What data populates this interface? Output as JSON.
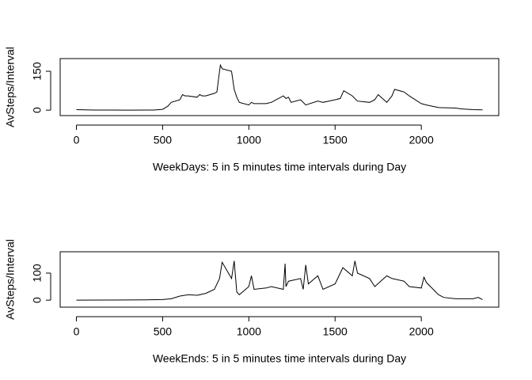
{
  "chart_data": [
    {
      "type": "line",
      "ylabel": "AvSteps/Interval",
      "xlabel": "WeekDays: 5 in 5 minutes time intervals during Day",
      "color": "#000000",
      "x": [
        0,
        100,
        200,
        300,
        400,
        450,
        500,
        530,
        550,
        600,
        615,
        630,
        645,
        700,
        715,
        730,
        750,
        800,
        815,
        830,
        835,
        845,
        900,
        915,
        930,
        945,
        1000,
        1015,
        1030,
        1100,
        1130,
        1200,
        1215,
        1230,
        1245,
        1300,
        1330,
        1400,
        1430,
        1500,
        1530,
        1550,
        1600,
        1630,
        1700,
        1730,
        1750,
        1800,
        1830,
        1845,
        1900,
        1930,
        2000,
        2030,
        2100,
        2200,
        2230,
        2300,
        2355
      ],
      "values": [
        2,
        0.5,
        0.3,
        0.2,
        0.3,
        0.5,
        3,
        15,
        30,
        40,
        60,
        55,
        55,
        50,
        60,
        55,
        55,
        65,
        70,
        150,
        174,
        160,
        150,
        80,
        50,
        30,
        20,
        30,
        25,
        25,
        30,
        55,
        45,
        50,
        30,
        40,
        20,
        35,
        30,
        40,
        45,
        75,
        55,
        35,
        30,
        40,
        60,
        30,
        55,
        80,
        70,
        55,
        25,
        20,
        10,
        8,
        5,
        2,
        1
      ],
      "xlim": [
        -94,
        2449
      ],
      "xticks": [
        0,
        500,
        1000,
        1500,
        2000
      ],
      "ylim": [
        -21,
        199
      ],
      "yticks": [
        0,
        150
      ]
    },
    {
      "type": "line",
      "ylabel": "AvSteps/Interval",
      "xlabel": "WeekEnds: 5 in 5 minutes time intervals during Day",
      "color": "#000000",
      "x": [
        0,
        200,
        400,
        500,
        550,
        600,
        650,
        700,
        750,
        800,
        830,
        845,
        900,
        915,
        930,
        945,
        1000,
        1015,
        1030,
        1100,
        1130,
        1200,
        1210,
        1215,
        1230,
        1300,
        1315,
        1330,
        1345,
        1400,
        1430,
        1500,
        1530,
        1545,
        1600,
        1615,
        1630,
        1700,
        1730,
        1800,
        1830,
        1900,
        1930,
        2000,
        2015,
        2030,
        2100,
        2130,
        2200,
        2300,
        2330,
        2355
      ],
      "values": [
        0,
        0.5,
        1,
        2,
        5,
        15,
        20,
        18,
        25,
        40,
        80,
        140,
        80,
        145,
        30,
        20,
        50,
        90,
        40,
        45,
        50,
        40,
        135,
        50,
        70,
        80,
        40,
        130,
        60,
        90,
        40,
        60,
        100,
        120,
        90,
        145,
        100,
        80,
        50,
        90,
        80,
        70,
        50,
        45,
        85,
        65,
        20,
        10,
        5,
        5,
        10,
        2
      ],
      "xlim": [
        -94,
        2449
      ],
      "xticks": [
        0,
        500,
        1000,
        1500,
        2000
      ],
      "ylim": [
        -26,
        179
      ],
      "yticks": [
        0,
        100
      ]
    }
  ]
}
